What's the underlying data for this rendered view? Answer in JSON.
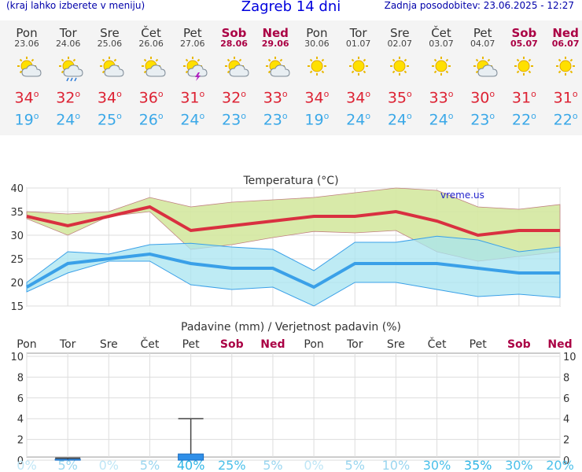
{
  "header": {
    "hint": "(kraj lahko izberete v meniju)",
    "title": "Zagreb 14 dni",
    "updated": "Zadnja posodobitev: 23.06.2025 - 12:27"
  },
  "days": [
    {
      "name": "Pon",
      "date": "23.06",
      "weekend": false,
      "icon": "sun-cloud-icon",
      "tmax": "34",
      "tmin": "19"
    },
    {
      "name": "Tor",
      "date": "24.06",
      "weekend": false,
      "icon": "sun-cloud-rain-icon",
      "tmax": "32",
      "tmin": "24"
    },
    {
      "name": "Sre",
      "date": "25.06",
      "weekend": false,
      "icon": "sun-cloud-icon",
      "tmax": "34",
      "tmin": "25"
    },
    {
      "name": "Čet",
      "date": "26.06",
      "weekend": false,
      "icon": "sun-cloud-icon",
      "tmax": "36",
      "tmin": "26"
    },
    {
      "name": "Pet",
      "date": "27.06",
      "weekend": false,
      "icon": "sun-storm-icon",
      "tmax": "31",
      "tmin": "24"
    },
    {
      "name": "Sob",
      "date": "28.06",
      "weekend": true,
      "icon": "sun-cloud-icon",
      "tmax": "32",
      "tmin": "23"
    },
    {
      "name": "Ned",
      "date": "29.06",
      "weekend": true,
      "icon": "sun-cloud-icon",
      "tmax": "33",
      "tmin": "23"
    },
    {
      "name": "Pon",
      "date": "30.06",
      "weekend": false,
      "icon": "sun-icon",
      "tmax": "34",
      "tmin": "19"
    },
    {
      "name": "Tor",
      "date": "01.07",
      "weekend": false,
      "icon": "sun-icon",
      "tmax": "34",
      "tmin": "24"
    },
    {
      "name": "Sre",
      "date": "02.07",
      "weekend": false,
      "icon": "sun-icon",
      "tmax": "35",
      "tmin": "24"
    },
    {
      "name": "Čet",
      "date": "03.07",
      "weekend": false,
      "icon": "sun-icon",
      "tmax": "33",
      "tmin": "24"
    },
    {
      "name": "Pet",
      "date": "04.07",
      "weekend": false,
      "icon": "sun-cloud-icon",
      "tmax": "30",
      "tmin": "23"
    },
    {
      "name": "Sob",
      "date": "05.07",
      "weekend": true,
      "icon": "sun-icon",
      "tmax": "31",
      "tmin": "22"
    },
    {
      "name": "Ned",
      "date": "06.07",
      "weekend": true,
      "icon": "sun-icon",
      "tmax": "31",
      "tmin": "22"
    }
  ],
  "temp_chart": {
    "title": "Temperatura (°C)",
    "watermark": "vreme.us",
    "yticks": [
      "40",
      "35",
      "30",
      "25",
      "20",
      "15"
    ]
  },
  "precip_chart": {
    "title": "Padavine (mm) / Verjetnost padavin (%)",
    "yticks": [
      "10",
      "8",
      "6",
      "4",
      "2",
      "0"
    ],
    "probabilities": [
      "0%",
      "5%",
      "0%",
      "5%",
      "40%",
      "25%",
      "5%",
      "0%",
      "5%",
      "10%",
      "30%",
      "35%",
      "30%",
      "20%"
    ]
  },
  "colors": {
    "max_line": "#d93040",
    "min_line": "#3aa0e8",
    "max_band": "#d4e8a0",
    "min_band": "#a8e4f0",
    "weekend": "#aa0044",
    "precip_bar": "#2f8fe8"
  },
  "chart_data": [
    {
      "type": "line",
      "title": "Temperatura (°C)",
      "categories": [
        "23.06",
        "24.06",
        "25.06",
        "26.06",
        "27.06",
        "28.06",
        "29.06",
        "30.06",
        "01.07",
        "02.07",
        "03.07",
        "04.07",
        "05.07",
        "06.07"
      ],
      "ylim": [
        15,
        40
      ],
      "series": [
        {
          "values": [
            34,
            32,
            34,
            36,
            31,
            32,
            33,
            34,
            34,
            35,
            33,
            30,
            31,
            31
          ],
          "color": "#d93040"
        },
        {
          "values": [
            19,
            24,
            25,
            26,
            24,
            23,
            23,
            19,
            24,
            24,
            24,
            23,
            22,
            22
          ],
          "color": "#3aa0e8"
        }
      ],
      "bands": [
        {
          "low": [
            33.5,
            30,
            34,
            35,
            27,
            28,
            29.5,
            30.8,
            30.5,
            31,
            26.5,
            24.5,
            25.5,
            26.5
          ],
          "high": [
            35,
            34.5,
            35,
            38,
            36,
            37,
            37.5,
            38,
            39,
            40,
            39.5,
            36,
            35.5,
            36.5
          ]
        },
        {
          "low": [
            18,
            22,
            24.5,
            24.5,
            19.5,
            18.5,
            19,
            15,
            20,
            20,
            18.5,
            17,
            17.5,
            16.8
          ],
          "high": [
            20,
            26.5,
            26,
            28,
            28.3,
            27.5,
            27,
            22.5,
            28.5,
            28.5,
            29.8,
            29,
            26.5,
            27.5
          ]
        }
      ],
      "grid": true
    },
    {
      "type": "bar",
      "title": "Padavine (mm) / Verjetnost padavin (%)",
      "categories": [
        "Pon",
        "Tor",
        "Sre",
        "Čet",
        "Pet",
        "Sob",
        "Ned",
        "Pon",
        "Tor",
        "Sre",
        "Čet",
        "Pet",
        "Sob",
        "Ned"
      ],
      "ylim": [
        0,
        10
      ],
      "values": [
        0,
        0.1,
        0,
        0,
        0.6,
        0,
        0,
        0,
        0,
        0,
        0,
        0,
        0,
        0
      ],
      "error_high": [
        0,
        0.2,
        0,
        0,
        4,
        0,
        0,
        0,
        0,
        0,
        0,
        0,
        0,
        0
      ],
      "probability_percent": [
        0,
        5,
        0,
        5,
        40,
        25,
        5,
        0,
        5,
        10,
        30,
        35,
        30,
        20
      ],
      "grid": true
    }
  ]
}
